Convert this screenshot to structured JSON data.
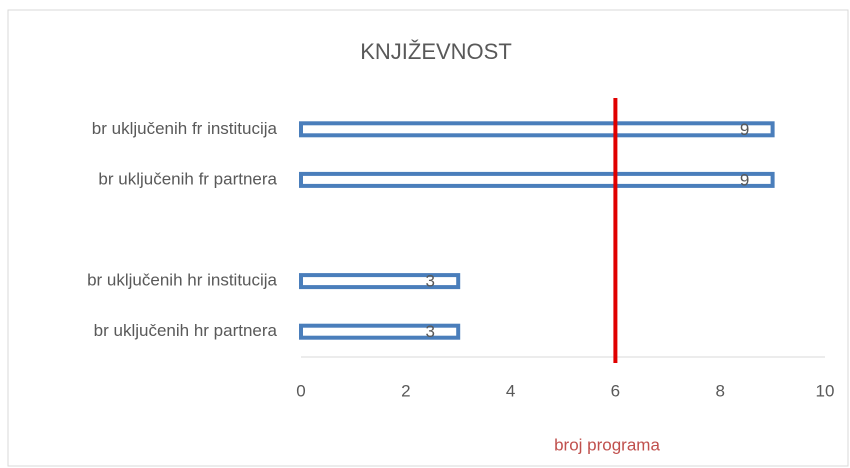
{
  "chart_data": {
    "type": "bar",
    "orientation": "horizontal",
    "title": "KNJIŽEVNOST",
    "categories": [
      "br uključenih fr institucija",
      "br uključenih fr partnera",
      null,
      "br uključenih hr institucija",
      "br uključenih hr partnera"
    ],
    "values": [
      9,
      9,
      null,
      3,
      3
    ],
    "color": "#4a7ebb",
    "xlim": [
      0,
      10
    ],
    "xticks": [
      0,
      2,
      4,
      6,
      8,
      10
    ],
    "x_label": "broj programa",
    "x_label_color": "#c0504d",
    "reference_line": {
      "value": 6,
      "color": "#e00000"
    },
    "data_labels": true
  }
}
